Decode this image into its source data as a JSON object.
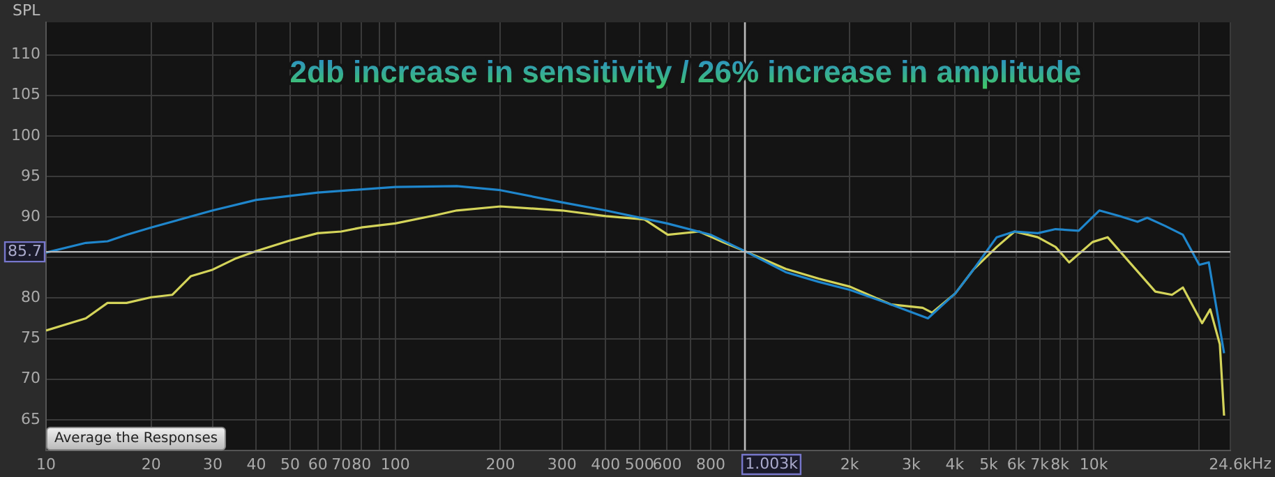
{
  "chart_data": {
    "type": "line",
    "title": "2db increase in sensitivity / 26% increase in amplitude",
    "ylabel": "SPL",
    "annotations": [
      "Average the Responses"
    ],
    "xlim": [
      10,
      24600
    ],
    "ylim": [
      61.2,
      114
    ],
    "log": "x",
    "grid": true,
    "legend": false,
    "marker": "none",
    "line_style": "solid",
    "xticks": [
      10,
      20,
      30,
      40,
      50,
      60,
      70,
      80,
      {
        "value": 90,
        "label": null
      },
      100,
      200,
      300,
      400,
      500,
      600,
      {
        "value": 700,
        "label": null
      },
      800,
      {
        "value": 900,
        "label": null
      },
      {
        "value": 1000,
        "label": null
      },
      {
        "value": 2000,
        "label": "2k"
      },
      {
        "value": 3000,
        "label": "3k"
      },
      {
        "value": 4000,
        "label": "4k"
      },
      {
        "value": 5000,
        "label": "5k"
      },
      {
        "value": 6000,
        "label": "6k"
      },
      {
        "value": 7000,
        "label": "7k"
      },
      {
        "value": 8000,
        "label": "8k"
      },
      {
        "value": 9000,
        "label": null
      },
      {
        "value": 10000,
        "label": "10k"
      },
      {
        "value": 20000,
        "label": null
      },
      {
        "value": 24600,
        "label": "24.6k"
      }
    ],
    "xlabel": "Hz",
    "yticks": [
      65,
      70,
      75,
      80,
      {
        "value": 85,
        "label": null
      },
      90,
      95,
      100,
      105,
      110
    ],
    "ref_lines": [
      {
        "axis": "y",
        "value": 85.7,
        "label": "85.7",
        "color": "#bbbbbb"
      },
      {
        "axis": "x",
        "value": 1003,
        "label": "1.003k",
        "color": "#bbbbbb"
      }
    ],
    "series": [
      {
        "color": "#1f86cc",
        "x": [
          10,
          13,
          15,
          17,
          20,
          30,
          40,
          50,
          60,
          100,
          150,
          200,
          300,
          400,
          600,
          800,
          1000,
          1311,
          1629,
          2005,
          2630,
          3350,
          4018,
          4519,
          5272,
          5930,
          6909,
          7770,
          9050,
          10370,
          11880,
          13340,
          14220,
          15990,
          17990,
          20040,
          21340,
          23600
        ],
        "values": [
          85.6,
          86.8,
          87.0,
          87.8,
          88.7,
          90.8,
          92.1,
          92.6,
          93.0,
          93.7,
          93.8,
          93.3,
          91.8,
          90.8,
          89.2,
          87.8,
          85.8,
          83.2,
          82.0,
          81.0,
          79.2,
          77.5,
          80.6,
          83.5,
          87.5,
          88.2,
          88.0,
          88.5,
          88.3,
          90.8,
          90.1,
          89.4,
          89.9,
          88.9,
          87.8,
          84.1,
          84.4,
          73.2
        ]
      },
      {
        "color": "#d4d45a",
        "x": [
          10,
          13,
          15,
          17,
          20,
          23,
          26,
          30,
          35,
          40,
          50,
          60,
          70,
          80,
          100,
          130,
          150,
          200,
          300,
          400,
          517,
          603,
          742,
          866,
          1000,
          1311,
          1629,
          2005,
          2630,
          3236,
          3445,
          4018,
          4519,
          5272,
          5930,
          6909,
          7770,
          8500,
          9910,
          10950,
          12540,
          15000,
          16740,
          17990,
          20420,
          21540,
          22950,
          23600
        ],
        "values": [
          76.0,
          77.5,
          79.4,
          79.4,
          80.1,
          80.4,
          82.7,
          83.5,
          84.9,
          85.8,
          87.1,
          88.0,
          88.2,
          88.7,
          89.2,
          90.2,
          90.8,
          91.3,
          90.8,
          90.1,
          89.7,
          87.8,
          88.2,
          86.9,
          85.8,
          83.6,
          82.4,
          81.4,
          79.2,
          78.8,
          78.2,
          80.6,
          83.5,
          86.3,
          88.2,
          87.5,
          86.3,
          84.4,
          86.9,
          87.5,
          84.6,
          80.8,
          80.4,
          81.3,
          76.9,
          78.6,
          74.3,
          65.5
        ]
      }
    ]
  }
}
